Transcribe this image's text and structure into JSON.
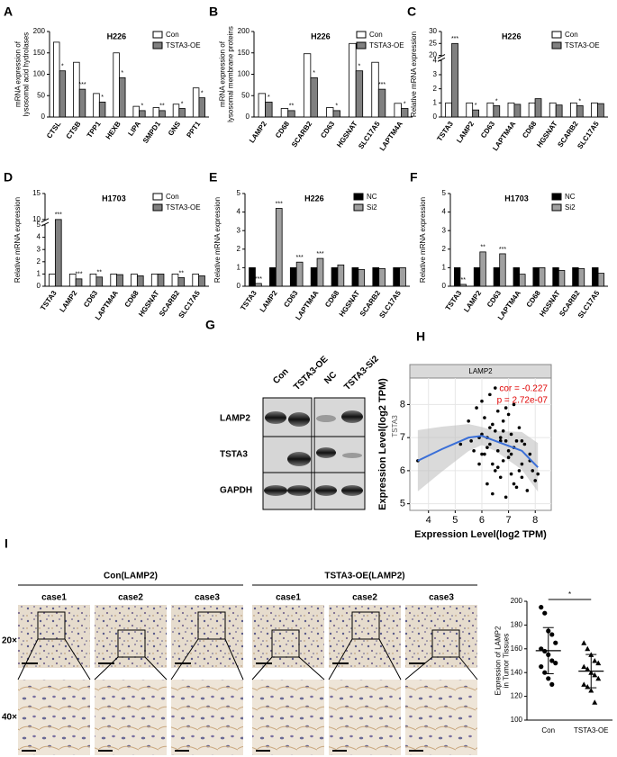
{
  "chart_data": [
    {
      "type": "bar",
      "label": "A",
      "title": "H226",
      "ylabel": [
        "mRNA expression of",
        "lysosomal acid hydrolases"
      ],
      "categories": [
        "CTSL",
        "CTSB",
        "TPP1",
        "HEXB",
        "LIPA",
        "SMPD1",
        "GNS",
        "PPT1"
      ],
      "series": [
        {
          "name": "Con",
          "color": "#ffffff",
          "values": [
            175,
            128,
            55,
            150,
            25,
            22,
            30,
            68
          ]
        },
        {
          "name": "TSTA3-OE",
          "color": "#808080",
          "values": [
            108,
            65,
            35,
            92,
            15,
            15,
            20,
            45
          ]
        }
      ],
      "significance": [
        "*",
        "***",
        "*",
        "*",
        "*",
        "**",
        "*",
        "*"
      ],
      "ylim": [
        0,
        200
      ],
      "yticks": [
        0,
        50,
        100,
        150,
        200
      ]
    },
    {
      "type": "bar",
      "label": "B",
      "title": "H226",
      "ylabel": [
        "mRNA expression of",
        "lysosomal membrane proteins"
      ],
      "categories": [
        "LAMP2",
        "CD68",
        "SCARB2",
        "CD63",
        "HGSNAT",
        "SLC17A5",
        "LAPTM4A"
      ],
      "series": [
        {
          "name": "Con",
          "color": "#ffffff",
          "values": [
            55,
            20,
            148,
            22,
            172,
            128,
            32
          ]
        },
        {
          "name": "TSTA3-OE",
          "color": "#808080",
          "values": [
            35,
            15,
            92,
            15,
            108,
            65,
            20
          ]
        }
      ],
      "significance": [
        "*",
        "**",
        "*",
        "*",
        "*",
        "***",
        "*"
      ],
      "ylim": [
        0,
        200
      ],
      "yticks": [
        0,
        50,
        100,
        150,
        200
      ]
    },
    {
      "type": "bar",
      "label": "C",
      "title": "H226",
      "ylabel": [
        "Relative mRNA expression"
      ],
      "categories": [
        "TSTA3",
        "LAMP2",
        "CD63",
        "LAPTM4A",
        "CD68",
        "HGSNAT",
        "SCARB2",
        "SLC17A5"
      ],
      "series": [
        {
          "name": "Con",
          "color": "#ffffff",
          "values": [
            1,
            1,
            1,
            1,
            1,
            1,
            1,
            1
          ]
        },
        {
          "name": "TSTA3-OE",
          "color": "#808080",
          "values": [
            25,
            0.5,
            0.8,
            0.9,
            1.3,
            0.85,
            0.8,
            0.95
          ]
        }
      ],
      "significance": [
        "***",
        "*",
        "*",
        null,
        null,
        null,
        "*",
        null
      ],
      "ylim": [
        0,
        30
      ],
      "ybreak": [
        4,
        20
      ],
      "yticks": [
        0,
        1,
        2,
        3,
        4,
        20,
        25,
        30
      ]
    },
    {
      "type": "bar",
      "label": "D",
      "title": "H1703",
      "ylabel": [
        "Relative mRNA expression"
      ],
      "categories": [
        "TSTA3",
        "LAMP2",
        "CD63",
        "LAPTM4A",
        "CD68",
        "HGSNAT",
        "SCARB2",
        "SLC17A5"
      ],
      "series": [
        {
          "name": "Con",
          "color": "#ffffff",
          "values": [
            1,
            1,
            1,
            1,
            1,
            1,
            1,
            1
          ]
        },
        {
          "name": "TSTA3-OE",
          "color": "#808080",
          "values": [
            10,
            0.6,
            0.75,
            0.95,
            0.85,
            1.0,
            0.7,
            0.85
          ]
        }
      ],
      "significance": [
        "***",
        "***",
        "**",
        null,
        null,
        null,
        "**",
        null
      ],
      "ylim": [
        0,
        15
      ],
      "ybreak": [
        5,
        10
      ],
      "yticks": [
        0,
        1,
        2,
        3,
        4,
        5,
        10,
        15
      ]
    },
    {
      "type": "bar",
      "label": "E",
      "title": "H226",
      "ylabel": [
        "Relative mRNA expression"
      ],
      "categories": [
        "TSTA3",
        "LAMP2",
        "CD63",
        "LAPTM4A",
        "CD68",
        "HGSNAT",
        "SCARB2",
        "SLC17A5"
      ],
      "series": [
        {
          "name": "NC",
          "color": "#000000",
          "values": [
            1,
            1,
            1,
            1,
            1,
            1,
            1,
            1
          ]
        },
        {
          "name": "Si2",
          "color": "#a0a0a0",
          "values": [
            0.15,
            4.2,
            1.3,
            1.5,
            1.15,
            0.9,
            0.95,
            1.0
          ]
        }
      ],
      "significance": [
        "***",
        "***",
        "***",
        "***",
        null,
        null,
        null,
        null
      ],
      "ylim": [
        0,
        5
      ],
      "yticks": [
        0,
        1,
        2,
        3,
        4,
        5
      ]
    },
    {
      "type": "bar",
      "label": "F",
      "title": "H1703",
      "ylabel": [
        "Relative mRNA expression"
      ],
      "categories": [
        "TSTA3",
        "LAMP2",
        "CD63",
        "LAPTM4A",
        "CD68",
        "HGSNAT",
        "SCARB2",
        "SLC17A5"
      ],
      "series": [
        {
          "name": "NC",
          "color": "#000000",
          "values": [
            1,
            1,
            1,
            1,
            1,
            1,
            1,
            1
          ]
        },
        {
          "name": "Si2",
          "color": "#a0a0a0",
          "values": [
            0.1,
            1.85,
            1.75,
            0.65,
            1.0,
            0.85,
            0.95,
            0.7
          ]
        }
      ],
      "significance": [
        "**",
        "**",
        "***",
        null,
        null,
        null,
        null,
        null
      ],
      "ylim": [
        0,
        5
      ],
      "yticks": [
        0,
        1,
        2,
        3,
        4,
        5
      ]
    },
    {
      "type": "scatter",
      "label": "H",
      "strip": "LAMP2",
      "ylabel": "Expression Level(log2 TPM)",
      "side_label": "TSTA3",
      "xlabel": "Expression Level(log2 TPM)",
      "cor": "cor = -0.227",
      "p": "p = 2.72e-07",
      "color": "#000000",
      "trend_color": "#3a6fd8",
      "x": [
        3.6,
        5.2,
        5.5,
        5.7,
        5.8,
        5.9,
        6.0,
        6.0,
        6.1,
        6.1,
        6.2,
        6.2,
        6.3,
        6.3,
        6.4,
        6.4,
        6.5,
        6.5,
        6.5,
        6.6,
        6.6,
        6.7,
        6.7,
        6.8,
        6.8,
        6.9,
        6.9,
        7.0,
        7.0,
        7.1,
        7.1,
        7.2,
        7.2,
        7.3,
        7.3,
        7.4,
        7.5,
        7.5,
        7.6,
        7.7,
        7.8,
        7.9,
        8.0,
        8.1,
        5.6,
        6.0,
        6.3,
        6.6,
        6.9,
        7.2,
        7.5,
        7.8,
        5.9,
        6.2,
        6.8,
        7.1,
        7.4,
        6.4,
        6.7,
        7.0
      ],
      "y": [
        6.3,
        6.8,
        7.5,
        6.6,
        7.9,
        6.2,
        8.1,
        7.1,
        6.5,
        7.6,
        5.6,
        7.0,
        8.3,
        6.8,
        5.3,
        7.4,
        6.0,
        7.2,
        8.5,
        6.6,
        7.8,
        5.8,
        7.0,
        6.3,
        7.5,
        5.2,
        6.9,
        7.7,
        6.4,
        5.9,
        7.1,
        6.7,
        8.0,
        5.5,
        6.9,
        7.3,
        6.2,
        5.8,
        6.8,
        5.4,
        6.5,
        6.0,
        5.7,
        5.9,
        6.9,
        6.5,
        7.3,
        6.1,
        7.9,
        5.6,
        6.9,
        6.3,
        7.0,
        6.7,
        7.2,
        6.5,
        6.0,
        6.2,
        6.9,
        6.6
      ],
      "trend": {
        "x": [
          3.6,
          4.5,
          5.5,
          6.0,
          6.5,
          7.0,
          7.5,
          8.1
        ],
        "y": [
          6.3,
          6.65,
          7.0,
          7.05,
          6.9,
          6.75,
          6.6,
          6.1
        ]
      },
      "xlim": [
        3.3,
        8.6
      ],
      "xticks": [
        4,
        5,
        6,
        7,
        8
      ],
      "ylim": [
        4.8,
        8.8
      ],
      "yticks": [
        5,
        6,
        7,
        8
      ],
      "grid": true
    },
    {
      "type": "dot",
      "ylabel": [
        "Expression of LAMP2",
        "in Tumor Tissues"
      ],
      "categories": [
        "Con",
        "TSTA3-OE"
      ],
      "markers": [
        "circle",
        "triangle"
      ],
      "significance": "*",
      "values": [
        [
          195,
          190,
          175,
          172,
          165,
          160,
          158,
          155,
          150,
          148,
          145,
          140,
          135,
          130
        ],
        [
          165,
          160,
          155,
          150,
          148,
          145,
          143,
          140,
          138,
          135,
          130,
          128,
          125,
          115
        ]
      ],
      "ylim": [
        100,
        200
      ],
      "yticks": [
        100,
        120,
        140,
        160,
        180,
        200
      ]
    }
  ],
  "blot_panel": {
    "label": "G",
    "columns": [
      "Con",
      "TSTA3-OE",
      "NC",
      "TSTA3-Si2"
    ],
    "rows": [
      "LAMP2",
      "TSTA3",
      "GAPDH"
    ]
  },
  "ihc_panel": {
    "label": "I",
    "groups": [
      "Con(LAMP2)",
      "TSTA3-OE(LAMP2)"
    ],
    "cases": [
      "case1",
      "case2",
      "case3",
      "case1",
      "case2",
      "case3"
    ],
    "magnifications": [
      "20×",
      "40×"
    ]
  }
}
